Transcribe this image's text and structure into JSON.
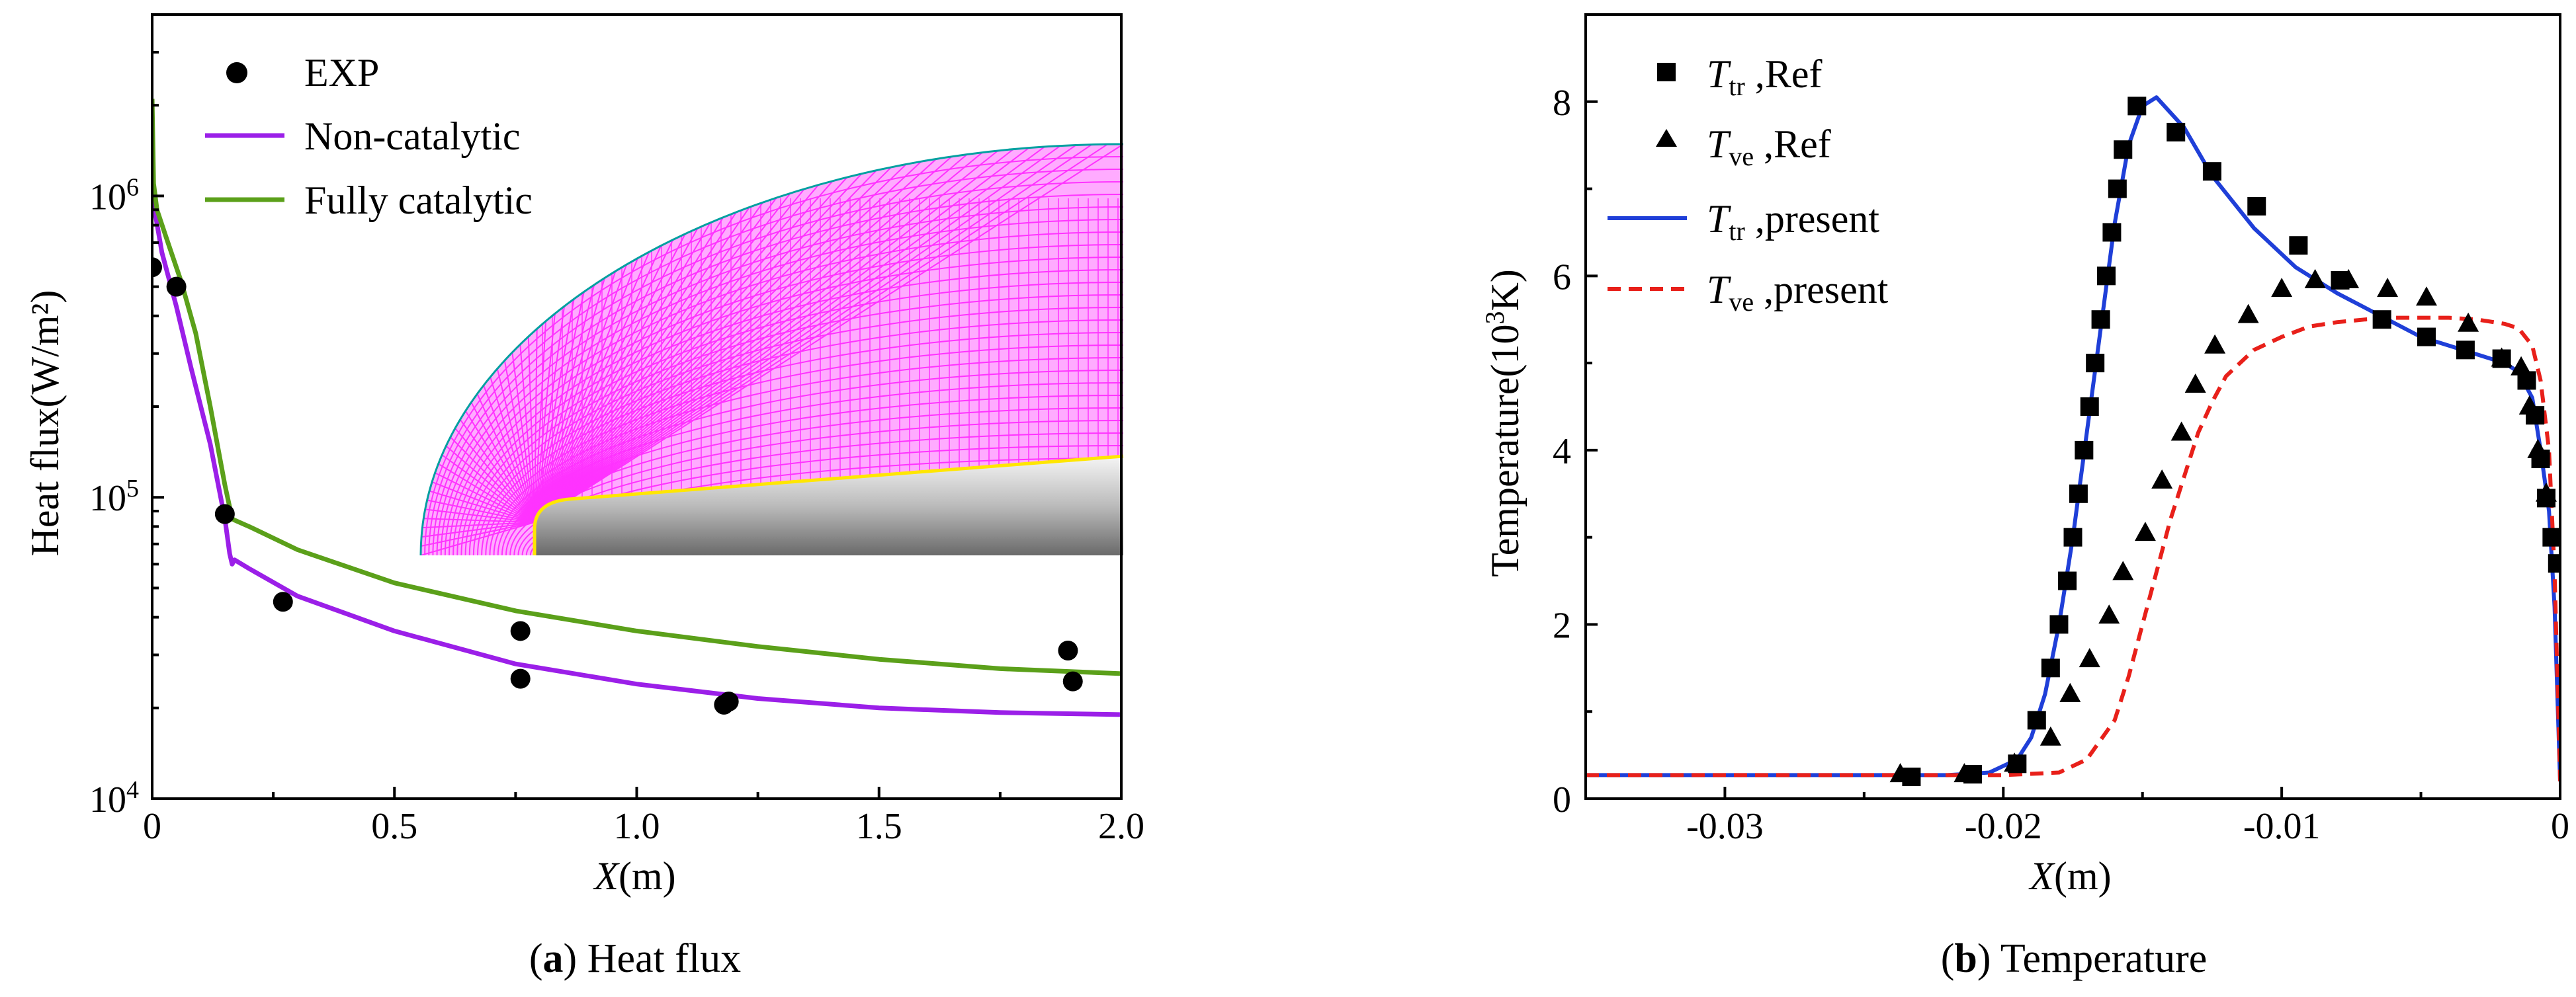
{
  "chart_data": [
    {
      "type": "line",
      "panel": "a",
      "caption_letter": "a",
      "caption_text": " Heat flux",
      "xlabel_var": "X",
      "xlabel_unit": "(m)",
      "ylabel": "Heat flux(W/m²)",
      "xlim": [
        0,
        2.0
      ],
      "ylim": [
        10000,
        4000000
      ],
      "yscale": "log",
      "x_ticks": [
        0,
        0.5,
        1.0,
        1.5,
        2.0
      ],
      "x_tick_labels": [
        "0",
        "0.5",
        "1.0",
        "1.5",
        "2.0"
      ],
      "y_ticks": [
        {
          "value": 10000,
          "base": "10",
          "exp": "4"
        },
        {
          "value": 100000,
          "base": "10",
          "exp": "5"
        },
        {
          "value": 1000000,
          "base": "10",
          "exp": "6"
        }
      ],
      "legend": [
        "EXP",
        "Non-catalytic",
        "Fully catalytic"
      ],
      "colors": {
        "non_catalytic": "#9B1FE8",
        "fully_catalytic": "#5BA01A",
        "exp": "#000000",
        "mesh": "#FF33FF",
        "wall": "#FFE600"
      },
      "inset": "computational mesh around blunt body",
      "series": [
        {
          "name": "EXP",
          "style": "scatter",
          "x": [
            0.0,
            0.05,
            0.15,
            0.27,
            0.76,
            0.76,
            1.18,
            1.19,
            1.89,
            1.9
          ],
          "y": [
            580000,
            500000,
            88000,
            45000,
            36000,
            25000,
            20500,
            21000,
            31000,
            24500
          ]
        },
        {
          "name": "Non-catalytic",
          "style": "line",
          "x": [
            0,
            0.005,
            0.02,
            0.05,
            0.08,
            0.12,
            0.15,
            0.16,
            0.165,
            0.17,
            0.2,
            0.3,
            0.5,
            0.75,
            1.0,
            1.25,
            1.5,
            1.75,
            2.0
          ],
          "y": [
            1300000,
            900000,
            650000,
            430000,
            270000,
            150000,
            85000,
            65000,
            60000,
            62000,
            58000,
            47000,
            36000,
            28000,
            24000,
            21500,
            20000,
            19300,
            19000
          ]
        },
        {
          "name": "Fully catalytic",
          "style": "line",
          "x": [
            0,
            0.003,
            0.01,
            0.03,
            0.06,
            0.09,
            0.12,
            0.15,
            0.165,
            0.17,
            0.2,
            0.3,
            0.5,
            0.75,
            1.0,
            1.25,
            1.5,
            1.75,
            2.0
          ],
          "y": [
            2100000,
            1100000,
            900000,
            720000,
            520000,
            350000,
            200000,
            110000,
            85000,
            84000,
            80000,
            67000,
            52000,
            42000,
            36000,
            32000,
            29000,
            27000,
            26000
          ]
        }
      ]
    },
    {
      "type": "line",
      "panel": "b",
      "caption_letter": "b",
      "caption_text": " Temperature",
      "xlabel_var": "X",
      "xlabel_unit": "(m)",
      "ylabel": "Temperature(10³K)",
      "xlim": [
        -0.035,
        0
      ],
      "ylim": [
        0,
        9
      ],
      "x_ticks": [
        -0.03,
        -0.02,
        -0.01,
        0
      ],
      "x_tick_labels": [
        "-0.03",
        "-0.02",
        "-0.01",
        "0"
      ],
      "y_ticks": [
        0,
        2,
        4,
        6,
        8
      ],
      "y_tick_labels": [
        "0",
        "2",
        "4",
        "6",
        "8"
      ],
      "legend": [
        {
          "var": "T",
          "sub": "tr",
          "suffix": " ,Ref"
        },
        {
          "var": "T",
          "sub": "ve",
          "suffix": " ,Ref"
        },
        {
          "var": "T",
          "sub": "tr",
          "suffix": " ,present"
        },
        {
          "var": "T",
          "sub": "ve",
          "suffix": " ,present"
        }
      ],
      "colors": {
        "tr_present": "#1F3FD8",
        "ve_present": "#E8201A",
        "ref": "#000000"
      },
      "series": [
        {
          "name": "Ttr,Ref",
          "style": "square",
          "x": [
            -0.0233,
            -0.0211,
            -0.0195,
            -0.0188,
            -0.0183,
            -0.018,
            -0.0177,
            -0.0175,
            -0.0173,
            -0.0171,
            -0.0169,
            -0.0167,
            -0.0165,
            -0.0163,
            -0.0161,
            -0.0159,
            -0.0157,
            -0.0152,
            -0.0138,
            -0.0125,
            -0.0109,
            -0.0094,
            -0.0079,
            -0.0064,
            -0.0048,
            -0.0034,
            -0.0021,
            -0.0012,
            -0.0009,
            -0.0007,
            -0.0005,
            -0.0003,
            -0.0001
          ],
          "y": [
            0.25,
            0.28,
            0.4,
            0.9,
            1.5,
            2.0,
            2.5,
            3.0,
            3.5,
            4.0,
            4.5,
            5.0,
            5.5,
            6.0,
            6.5,
            7.0,
            7.45,
            7.95,
            7.65,
            7.2,
            6.8,
            6.35,
            5.95,
            5.5,
            5.3,
            5.15,
            5.05,
            4.8,
            4.4,
            3.9,
            3.45,
            3.0,
            2.7
          ]
        },
        {
          "name": "Tve,Ref",
          "style": "triangle",
          "x": [
            -0.0237,
            -0.0214,
            -0.0196,
            -0.0183,
            -0.0176,
            -0.0169,
            -0.0162,
            -0.0157,
            -0.0149,
            -0.0143,
            -0.0136,
            -0.0131,
            -0.0124,
            -0.0112,
            -0.01,
            -0.0088,
            -0.0076,
            -0.0062,
            -0.0048,
            -0.0033,
            -0.0021,
            -0.0014,
            -0.0011,
            -0.0008,
            -0.0005
          ],
          "y": [
            0.28,
            0.28,
            0.4,
            0.7,
            1.2,
            1.6,
            2.1,
            2.6,
            3.05,
            3.65,
            4.2,
            4.75,
            5.2,
            5.55,
            5.85,
            5.95,
            5.95,
            5.85,
            5.75,
            5.45,
            5.05,
            4.95,
            4.5,
            4.0,
            3.5
          ]
        },
        {
          "name": "Ttr,present",
          "style": "solid",
          "x": [
            -0.035,
            -0.022,
            -0.0205,
            -0.0195,
            -0.019,
            -0.0185,
            -0.018,
            -0.0175,
            -0.017,
            -0.0165,
            -0.016,
            -0.0155,
            -0.015,
            -0.0145,
            -0.0135,
            -0.0125,
            -0.011,
            -0.0095,
            -0.008,
            -0.0065,
            -0.005,
            -0.0035,
            -0.0025,
            -0.002,
            -0.0015,
            -0.001,
            -0.0007,
            -0.0004,
            -0.0002,
            0
          ],
          "y": [
            0.27,
            0.27,
            0.3,
            0.45,
            0.7,
            1.2,
            2.0,
            3.0,
            4.2,
            5.4,
            6.6,
            7.5,
            7.95,
            8.05,
            7.7,
            7.15,
            6.55,
            6.1,
            5.8,
            5.55,
            5.3,
            5.15,
            5.05,
            5.0,
            4.9,
            4.6,
            4.0,
            3.3,
            2.2,
            0.2
          ]
        },
        {
          "name": "Tve,present",
          "style": "dashed",
          "x": [
            -0.035,
            -0.02,
            -0.018,
            -0.017,
            -0.016,
            -0.0155,
            -0.015,
            -0.0145,
            -0.014,
            -0.0135,
            -0.013,
            -0.0125,
            -0.012,
            -0.011,
            -0.01,
            -0.009,
            -0.008,
            -0.007,
            -0.006,
            -0.005,
            -0.004,
            -0.003,
            -0.002,
            -0.0015,
            -0.001,
            -0.0007,
            -0.0004,
            -0.0002,
            0
          ],
          "y": [
            0.27,
            0.27,
            0.3,
            0.45,
            0.9,
            1.4,
            2.0,
            2.6,
            3.2,
            3.7,
            4.2,
            4.55,
            4.85,
            5.15,
            5.3,
            5.42,
            5.47,
            5.5,
            5.52,
            5.52,
            5.52,
            5.5,
            5.45,
            5.4,
            5.2,
            4.8,
            4.0,
            2.6,
            0.2
          ]
        }
      ]
    }
  ]
}
